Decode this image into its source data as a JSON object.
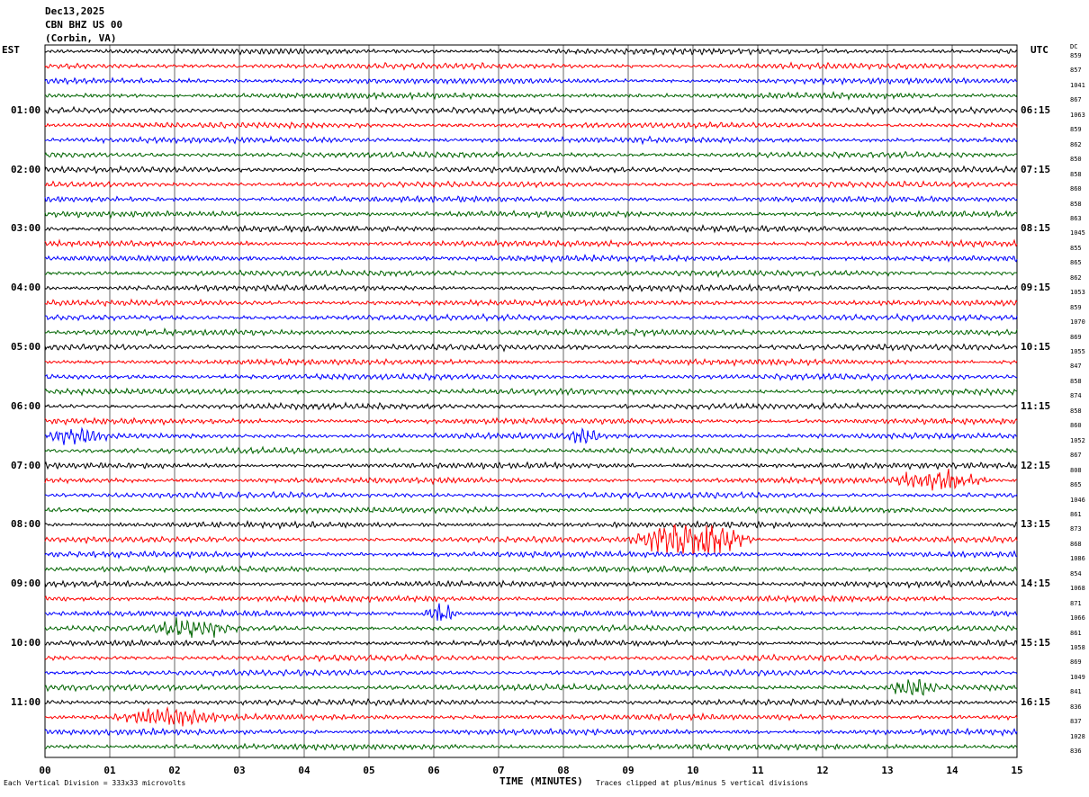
{
  "header": {
    "date": "Dec13,2025",
    "station": "CBN BHZ US 00",
    "location": "(Corbin, VA)"
  },
  "left_tz": "EST",
  "right_tz": "UTC",
  "dc_header": "DC",
  "footer": {
    "left": "Each Vertical Division =  333x33 microvolts",
    "right": "Traces clipped at plus/minus 5 vertical divisions"
  },
  "colors": [
    "#000000",
    "#ff0000",
    "#0000ff",
    "#006400"
  ],
  "chart_data": {
    "type": "line",
    "xlabel": "TIME (MINUTES)",
    "xlim": [
      0,
      15
    ],
    "x_ticks": [
      "00",
      "01",
      "02",
      "03",
      "04",
      "05",
      "06",
      "07",
      "08",
      "09",
      "10",
      "11",
      "12",
      "13",
      "14",
      "15"
    ],
    "left_hour_labels": [
      "01:00",
      "02:00",
      "03:00",
      "04:00",
      "05:00",
      "06:00",
      "07:00",
      "08:00",
      "09:00",
      "10:00",
      "11:00"
    ],
    "right_hour_labels": [
      "06:15",
      "07:15",
      "08:15",
      "09:15",
      "10:15",
      "11:15",
      "12:15",
      "13:15",
      "14:15",
      "15:15",
      "16:15"
    ],
    "dc_offsets": [
      "859",
      "857",
      "1041",
      "867",
      "1063",
      "859",
      "862",
      "850",
      "858",
      "860",
      "858",
      "863",
      "1045",
      "855",
      "865",
      "862",
      "1053",
      "859",
      "1070",
      "869",
      "1055",
      "847",
      "858",
      "874",
      "858",
      "860",
      "1052",
      "867",
      "808",
      "865",
      "1046",
      "861",
      "873",
      "868",
      "1086",
      "854",
      "1068",
      "871",
      "1066",
      "861",
      "1058",
      "869",
      "1049",
      "841",
      "836",
      "837",
      "1028",
      "836"
    ],
    "trace_count": 48,
    "minutes_per_trace": 15,
    "events": [
      {
        "trace": 33,
        "start_min": 9.0,
        "end_min": 11.0,
        "amplitude": 4.0
      },
      {
        "trace": 29,
        "start_min": 13.0,
        "end_min": 14.6,
        "amplitude": 1.8
      },
      {
        "trace": 26,
        "start_min": 0.0,
        "end_min": 1.0,
        "amplitude": 1.4
      },
      {
        "trace": 26,
        "start_min": 8.0,
        "end_min": 8.6,
        "amplitude": 1.4
      },
      {
        "trace": 38,
        "start_min": 5.8,
        "end_min": 6.4,
        "amplitude": 1.6
      },
      {
        "trace": 39,
        "start_min": 1.5,
        "end_min": 3.0,
        "amplitude": 1.5
      },
      {
        "trace": 43,
        "start_min": 13.0,
        "end_min": 13.8,
        "amplitude": 1.5
      },
      {
        "trace": 45,
        "start_min": 1.0,
        "end_min": 2.8,
        "amplitude": 1.6
      }
    ]
  }
}
